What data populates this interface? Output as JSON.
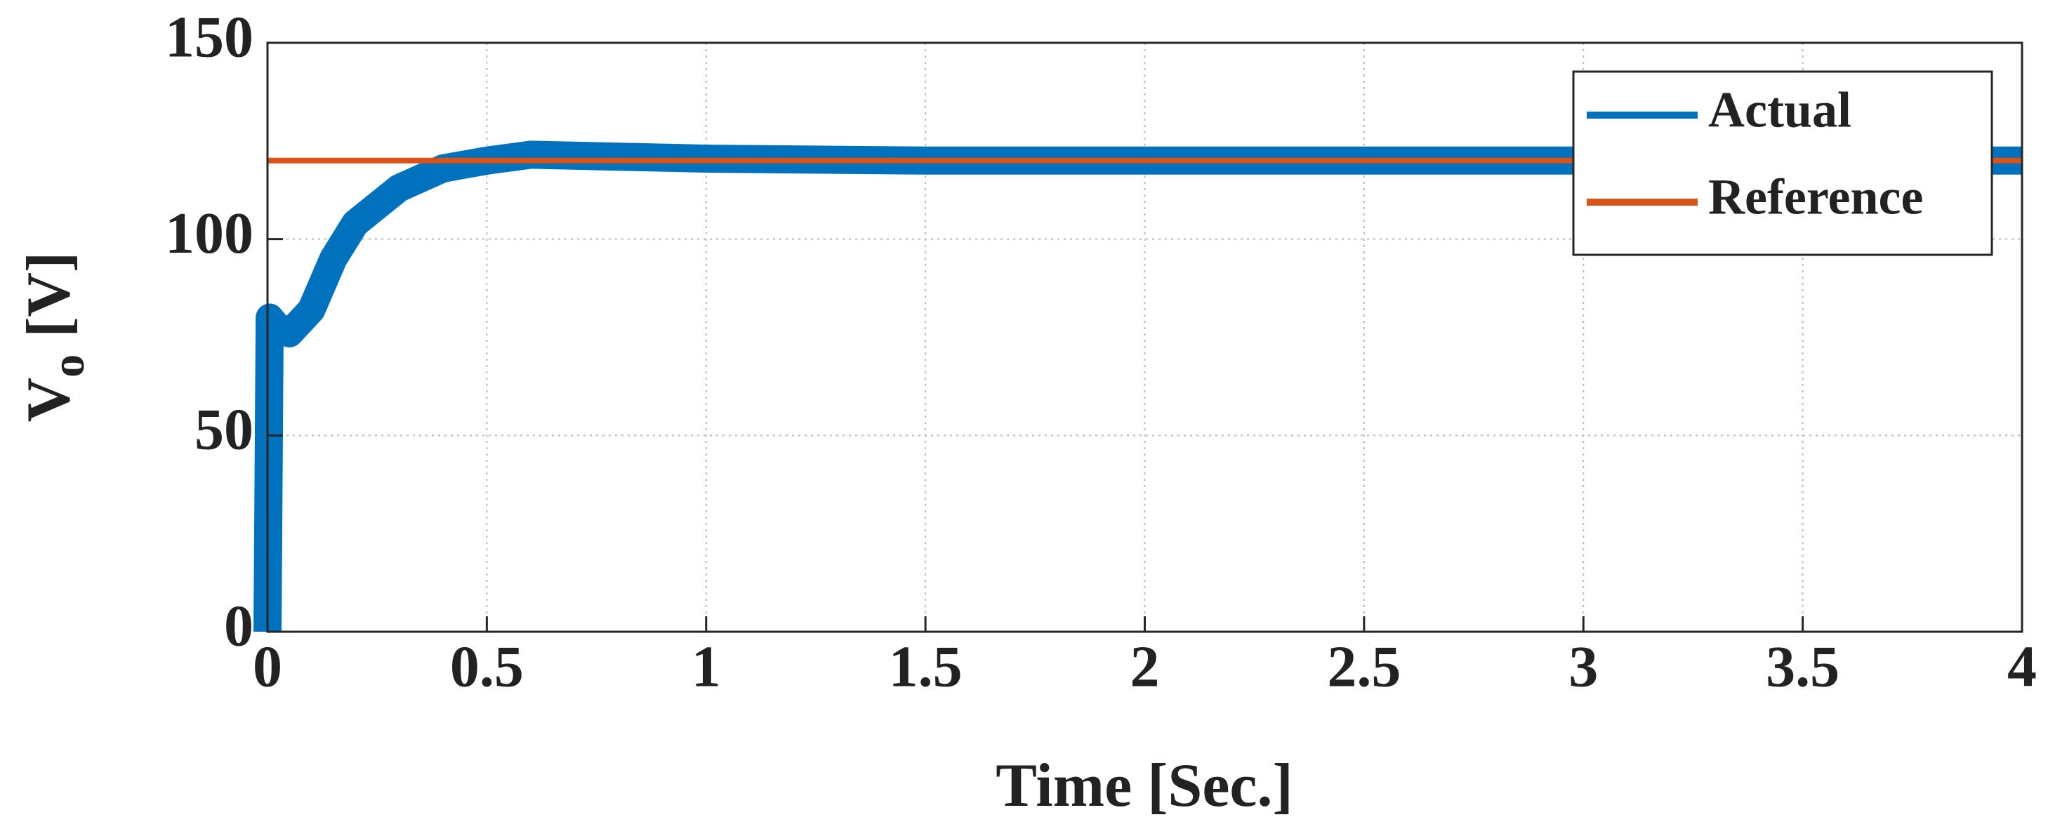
{
  "chart_data": {
    "type": "line",
    "xlabel": "Time [Sec.]",
    "ylabel": {
      "main": "V",
      "subscript": "o",
      "unit": "[V]"
    },
    "xlim": [
      0,
      4
    ],
    "ylim": [
      0,
      150
    ],
    "xticks": [
      0,
      0.5,
      1,
      1.5,
      2,
      2.5,
      3,
      3.5,
      4
    ],
    "yticks": [
      0,
      50,
      100,
      150
    ],
    "grid": true,
    "legend": "upper right",
    "series": [
      {
        "name": "Actual",
        "color": "#0072bd",
        "x": [
          0,
          0.005,
          0.02,
          0.05,
          0.1,
          0.15,
          0.2,
          0.3,
          0.4,
          0.5,
          0.6,
          0.8,
          1,
          1.5,
          2,
          3,
          4
        ],
        "values": [
          0,
          80,
          78,
          76,
          82,
          95,
          104,
          113,
          118,
          120,
          121.5,
          121,
          120.5,
          120,
          120,
          120,
          120
        ]
      },
      {
        "name": "Reference",
        "color": "#d95319",
        "x": [
          0,
          4
        ],
        "values": [
          120,
          120
        ]
      }
    ]
  }
}
